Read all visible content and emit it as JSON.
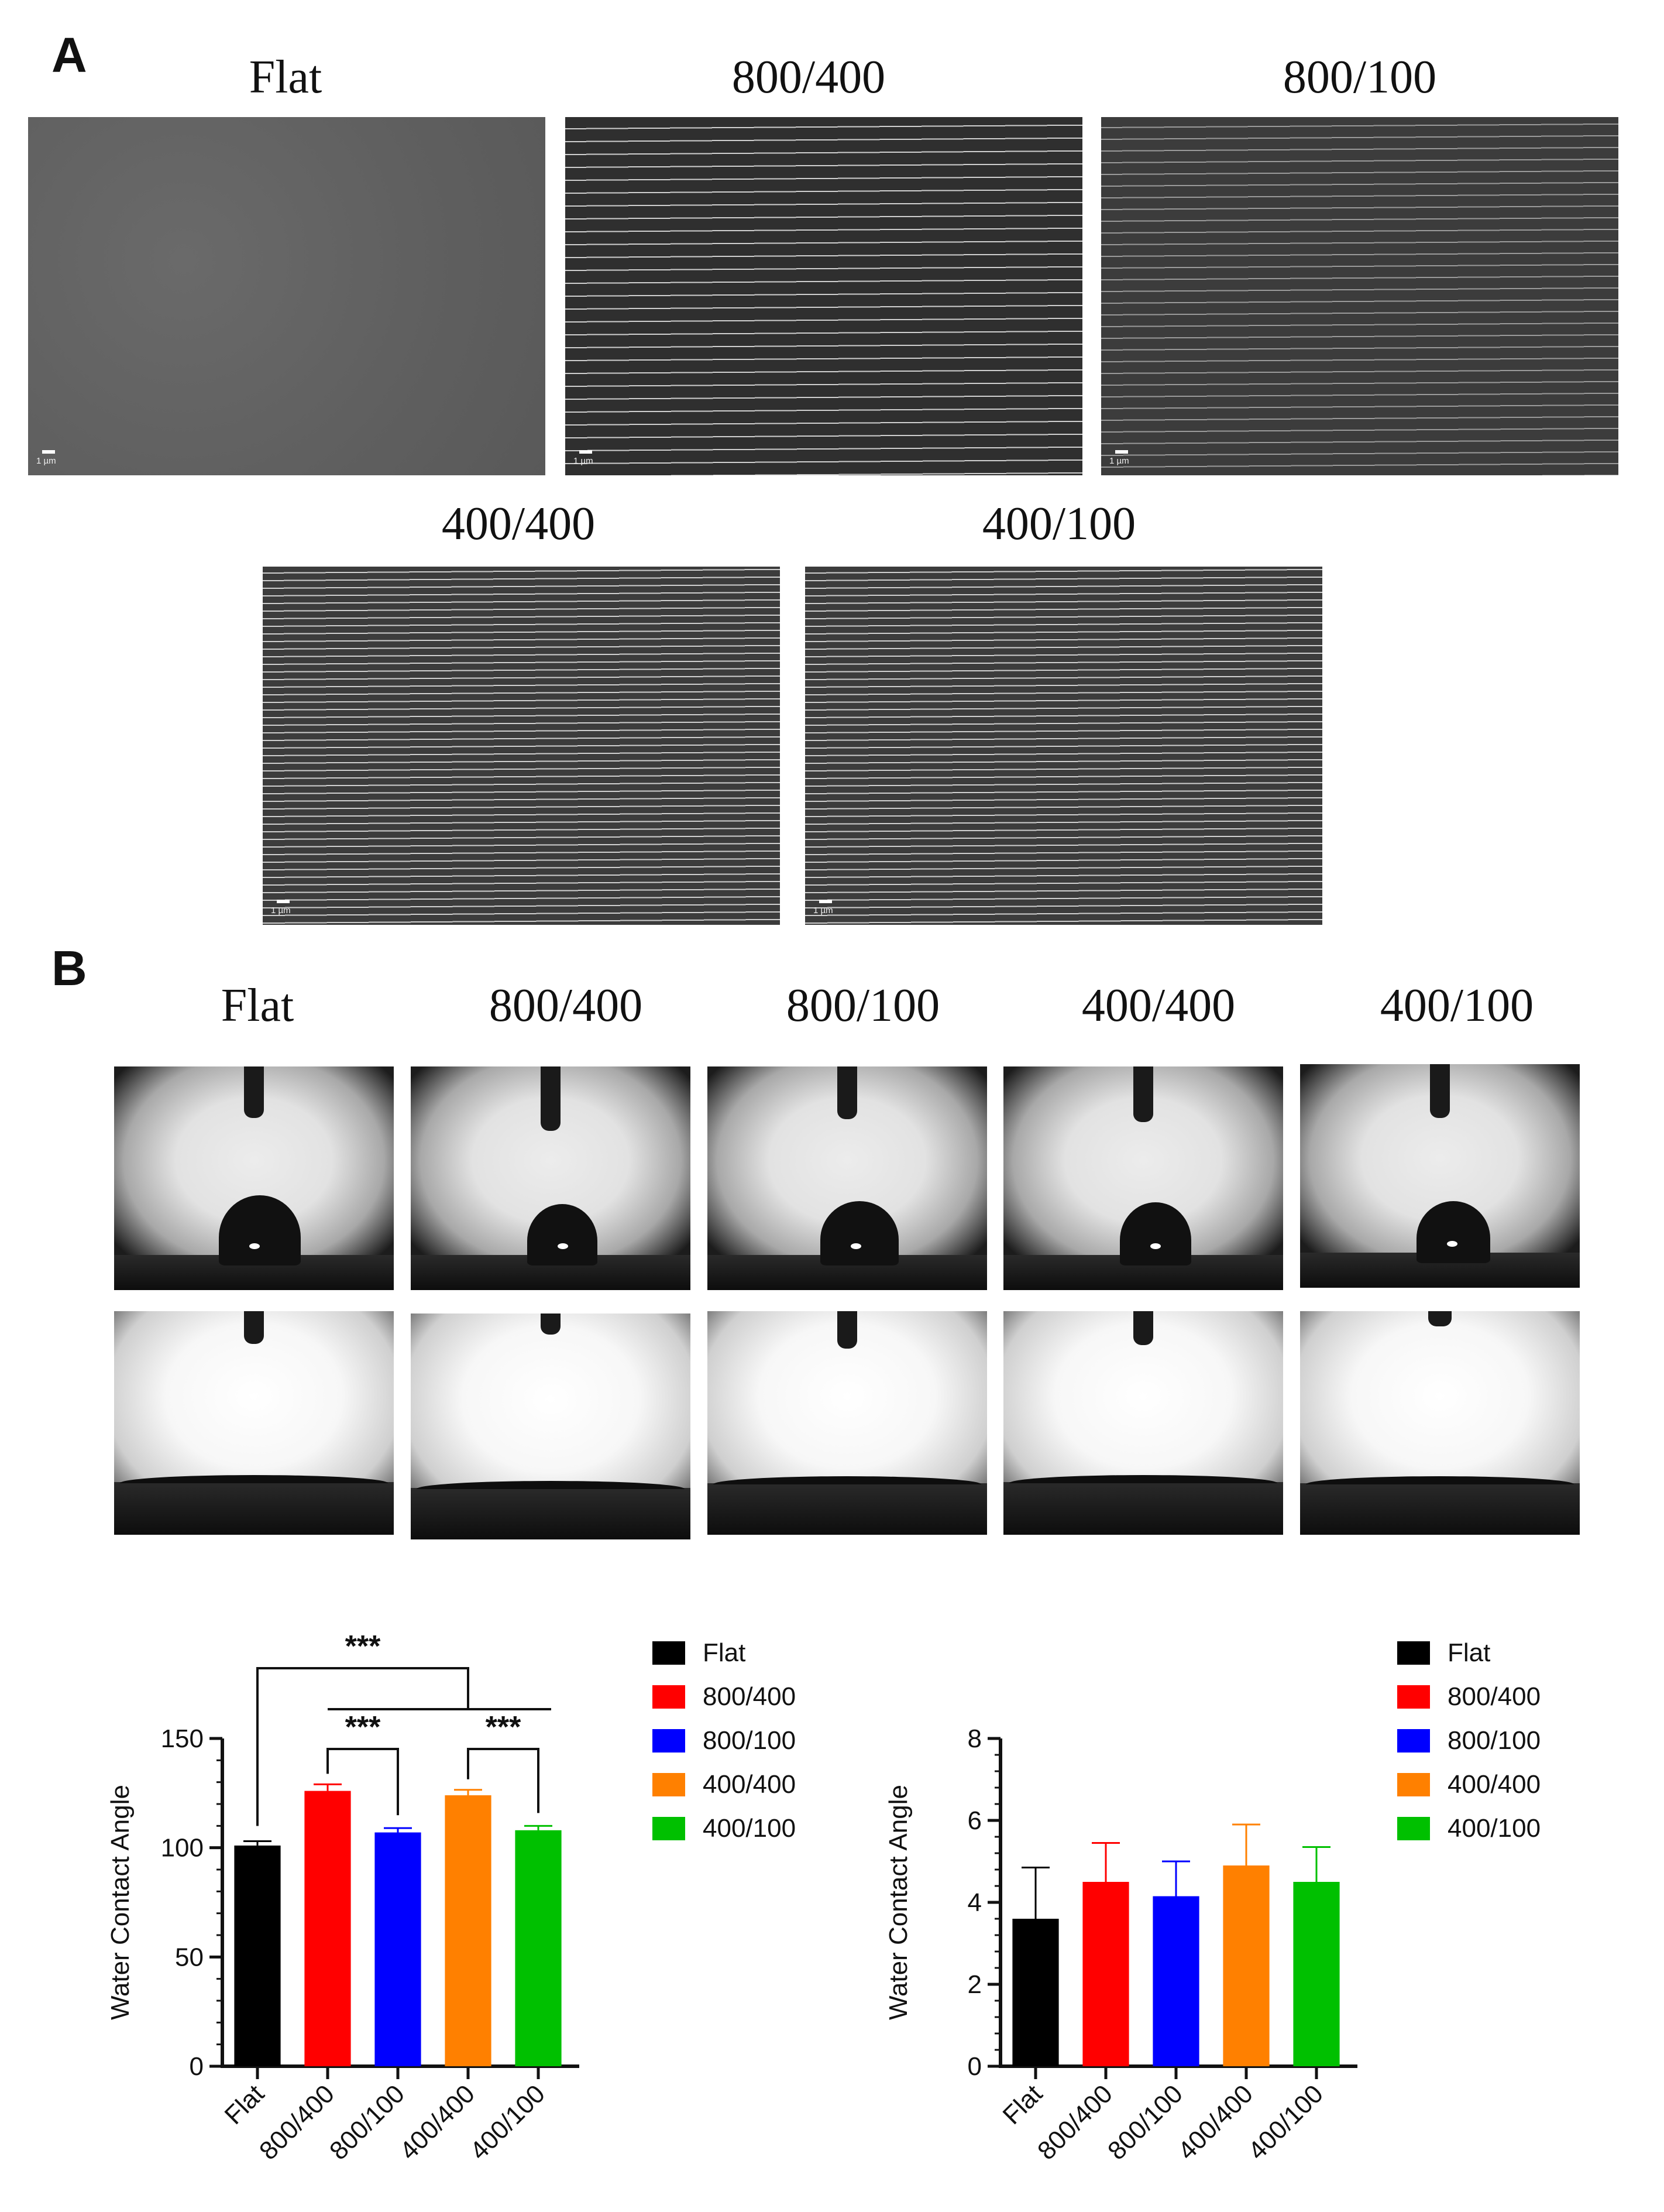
{
  "panel_a": {
    "letter": "A",
    "images": [
      {
        "title": "Flat",
        "scale": "1 µm",
        "pattern": "flat"
      },
      {
        "title": "800/400",
        "scale": "1 µm",
        "pattern": "wide"
      },
      {
        "title": "800/100",
        "scale": "1 µm",
        "pattern": "fine"
      },
      {
        "title": "400/400",
        "scale": "1 µm",
        "pattern": "dense"
      },
      {
        "title": "400/100",
        "scale": "1 µm",
        "pattern": "dense"
      }
    ]
  },
  "panel_b": {
    "letter": "B",
    "column_titles": [
      "Flat",
      "800/400",
      "800/100",
      "400/400",
      "400/100"
    ]
  },
  "chart_data": [
    {
      "type": "bar",
      "categories": [
        "Flat",
        "800/400",
        "800/100",
        "400/400",
        "400/100"
      ],
      "values": [
        101,
        126,
        107,
        124,
        108
      ],
      "errors": [
        2,
        3,
        2,
        2.5,
        2
      ],
      "colors": [
        "#000000",
        "#ff0000",
        "#0000ff",
        "#ff8000",
        "#00c000"
      ],
      "ylabel": "Water Contact Angle",
      "ylim": [
        0,
        150
      ],
      "yticks": [
        0,
        50,
        100,
        150
      ],
      "significance": [
        {
          "label": "***",
          "from": "Flat",
          "to": "800/400–400/100 group"
        },
        {
          "label": "***",
          "from": "800/400",
          "to": "800/100"
        },
        {
          "label": "***",
          "from": "400/400",
          "to": "400/100"
        }
      ],
      "legend": [
        "Flat",
        "800/400",
        "800/100",
        "400/400",
        "400/100"
      ]
    },
    {
      "type": "bar",
      "categories": [
        "Flat",
        "800/400",
        "800/100",
        "400/400",
        "400/100"
      ],
      "values": [
        3.6,
        4.5,
        4.15,
        4.9,
        4.5
      ],
      "errors": [
        1.25,
        0.95,
        0.85,
        1.0,
        0.85
      ],
      "colors": [
        "#000000",
        "#ff0000",
        "#0000ff",
        "#ff8000",
        "#00c000"
      ],
      "ylabel": "Water Contact Angle",
      "ylim": [
        0,
        8
      ],
      "yticks": [
        0,
        2,
        4,
        6,
        8
      ],
      "legend": [
        "Flat",
        "800/400",
        "800/100",
        "400/400",
        "400/100"
      ]
    }
  ]
}
